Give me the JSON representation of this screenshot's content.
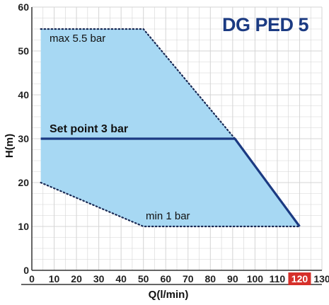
{
  "chart_data": {
    "type": "area",
    "title": "DG PED 5",
    "xlabel": "Q(l/min)",
    "ylabel": "H(m)",
    "xlim": [
      0,
      130
    ],
    "ylim": [
      0,
      60
    ],
    "x_ticks": [
      "0",
      "10",
      "20",
      "30",
      "40",
      "50",
      "60",
      "70",
      "80",
      "90",
      "100",
      "110",
      "120",
      "130"
    ],
    "y_ticks": [
      "0",
      "10",
      "20",
      "30",
      "40",
      "50",
      "60"
    ],
    "highlighted_x_tick": "120",
    "grid": true,
    "operating_region": [
      [
        4,
        55
      ],
      [
        50,
        55
      ],
      [
        91,
        30
      ],
      [
        120,
        10
      ],
      [
        50,
        10
      ],
      [
        4,
        20
      ]
    ],
    "series": [
      {
        "name": "Set point 3 bar",
        "x": [
          4,
          91,
          120
        ],
        "y": [
          30,
          30,
          10
        ]
      }
    ],
    "boundaries": [
      {
        "name": "max 5.5 bar",
        "x": [
          4,
          50,
          91
        ],
        "y": [
          55,
          55,
          30
        ]
      },
      {
        "name": "min 1 bar",
        "x": [
          4,
          50,
          120
        ],
        "y": [
          20,
          10,
          10
        ]
      }
    ],
    "annotations": {
      "max": "max 5.5 bar",
      "setpoint": "Set point 3 bar",
      "min": "min 1 bar"
    },
    "colors": {
      "fill": "#a7d8f3",
      "line": "#1b3a82",
      "title": "#1b3a82",
      "highlight": "#d6302a",
      "grid": "#d4d4d4"
    }
  }
}
